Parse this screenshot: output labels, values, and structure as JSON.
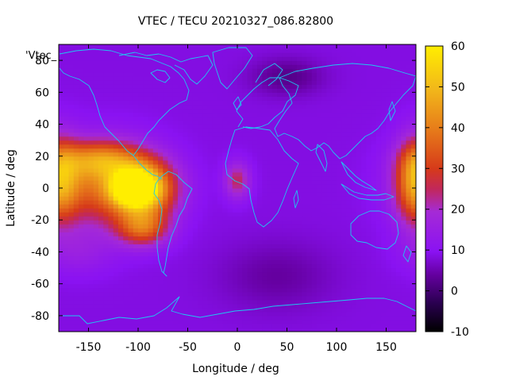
{
  "chart_data": {
    "type": "heatmap",
    "title": "VTEC / TECU 20210327_086.82800",
    "xlabel": "Longitude / deg",
    "ylabel": "Latitude / deg",
    "series_key": "'Vtec_",
    "xlim": [
      -180,
      180
    ],
    "ylim": [
      -90,
      90
    ],
    "x_ticks": [
      -150,
      -100,
      -50,
      0,
      50,
      100,
      150
    ],
    "y_ticks": [
      -80,
      -60,
      -40,
      -20,
      0,
      20,
      40,
      60,
      80
    ],
    "colorbar": {
      "min": -10,
      "max": 60,
      "ticks": [
        -10,
        0,
        10,
        20,
        30,
        40,
        50,
        60
      ],
      "palette": [
        [
          0.0,
          "#000000"
        ],
        [
          0.1,
          "#2a0050"
        ],
        [
          0.2,
          "#6500a0"
        ],
        [
          0.28,
          "#8a12f2"
        ],
        [
          0.42,
          "#a52ad6"
        ],
        [
          0.5,
          "#c2285a"
        ],
        [
          0.57,
          "#d63a1a"
        ],
        [
          0.7,
          "#e6781a"
        ],
        [
          0.85,
          "#f2b81a"
        ],
        [
          1.0,
          "#ffee00"
        ]
      ]
    },
    "grid": false,
    "features": [
      {
        "name": "background",
        "value": 8.5
      },
      {
        "name": "equatorial-anomaly-central-pacific",
        "lon": -135,
        "lat": 2,
        "peak": 34,
        "sigma_lon": 38,
        "sigma_lat": 18
      },
      {
        "name": "equatorial-anomaly-south-america",
        "lon": -95,
        "lat": 0,
        "peak": 50,
        "sigma_lon": 22,
        "sigma_lat": 12
      },
      {
        "name": "equatorial-anomaly-core",
        "lon": -105,
        "lat": 0,
        "peak": 55,
        "sigma_lon": 12,
        "sigma_lat": 6
      },
      {
        "name": "southern-crest-pacific",
        "lon": -95,
        "lat": -25,
        "peak": 32,
        "sigma_lon": 18,
        "sigma_lat": 8
      },
      {
        "name": "northern-crest-pacific",
        "lon": -140,
        "lat": 18,
        "peak": 30,
        "sigma_lon": 28,
        "sigma_lat": 8
      },
      {
        "name": "west-pacific-anomaly",
        "lon": 180,
        "lat": 5,
        "peak": 38,
        "sigma_lon": 14,
        "sigma_lat": 18
      },
      {
        "name": "gulf-of-guinea-enhancement",
        "lon": 0,
        "lat": 5,
        "peak": 25,
        "sigma_lon": 9,
        "sigma_lat": 8
      },
      {
        "name": "south-pacific-enhancement",
        "lon": -160,
        "lat": -40,
        "peak": 14,
        "sigma_lon": 25,
        "sigma_lat": 10
      },
      {
        "name": "north-atlantic-low",
        "lon": 50,
        "lat": 70,
        "peak": 2,
        "sigma_lon": 25,
        "sigma_lat": 8
      },
      {
        "name": "southern-atlantic-low",
        "lon": 40,
        "lat": -55,
        "peak": 4,
        "sigma_lon": 40,
        "sigma_lat": 15
      }
    ]
  }
}
